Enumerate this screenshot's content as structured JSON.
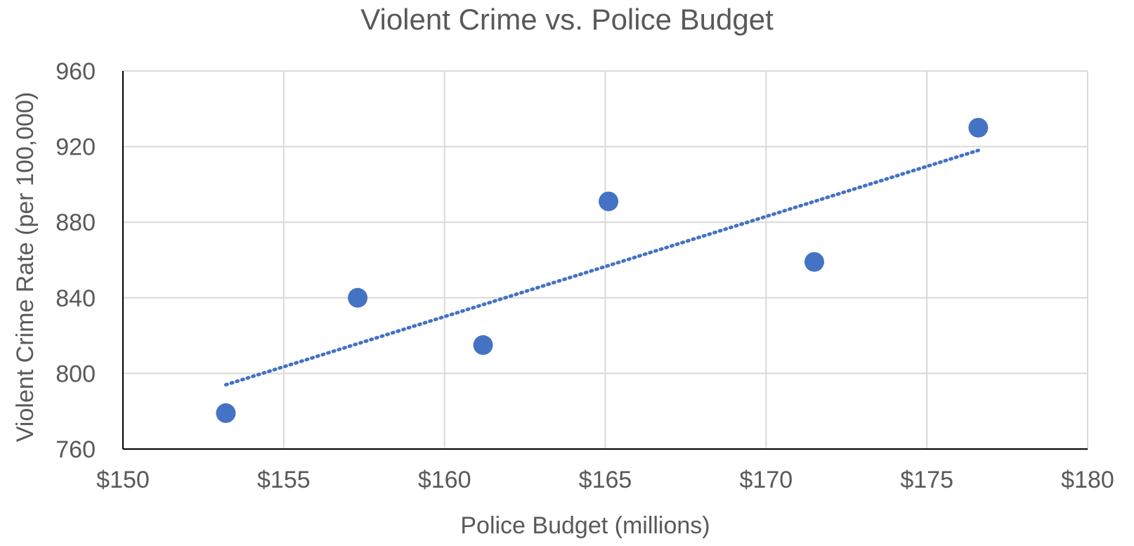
{
  "chart_data": {
    "type": "scatter",
    "title": "Violent Crime vs. Police Budget",
    "xlabel": "Police Budget (millions)",
    "ylabel": "Violent Crime Rate (per 100,000)",
    "xlim": [
      150,
      180
    ],
    "ylim": [
      760,
      960
    ],
    "x_ticks": [
      150,
      155,
      160,
      165,
      170,
      175,
      180
    ],
    "y_ticks": [
      760,
      800,
      840,
      880,
      920,
      960
    ],
    "x_tick_labels": [
      "$150",
      "$155",
      "$160",
      "$165",
      "$170",
      "$175",
      "$180"
    ],
    "y_tick_labels": [
      "760",
      "800",
      "840",
      "880",
      "920",
      "960"
    ],
    "grid": true,
    "color": "#4472C4",
    "series": [
      {
        "points": [
          {
            "x": 153.2,
            "y": 779
          },
          {
            "x": 157.3,
            "y": 840
          },
          {
            "x": 161.2,
            "y": 815
          },
          {
            "x": 165.1,
            "y": 891
          },
          {
            "x": 171.5,
            "y": 859
          },
          {
            "x": 176.6,
            "y": 930
          }
        ]
      }
    ],
    "trendline": {
      "type": "linear",
      "style": "dotted",
      "x_range": [
        153.2,
        176.6
      ],
      "y_range": [
        794,
        918
      ]
    }
  }
}
